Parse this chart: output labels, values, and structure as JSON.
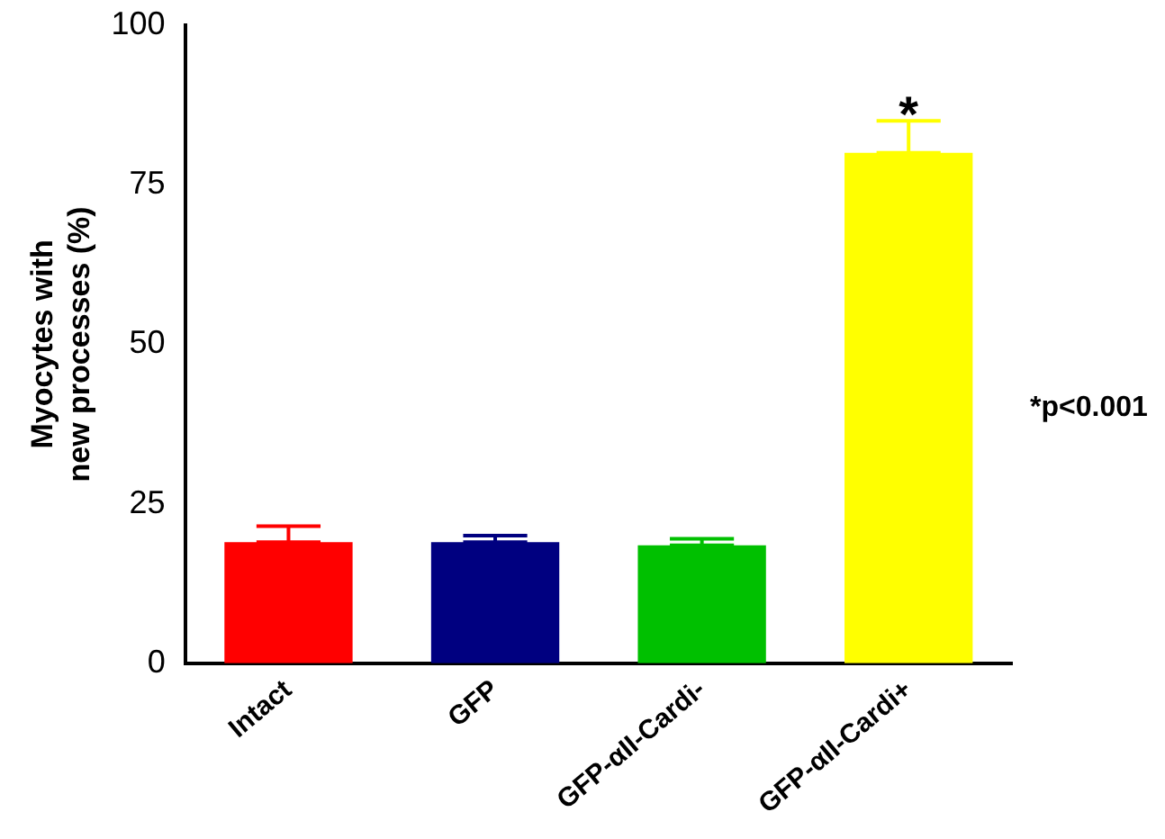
{
  "chart_data": {
    "type": "bar",
    "ylabel": "Myocytes with\nnew processes (%)",
    "categories": [
      "Intact",
      "GFP",
      "GFP-αII-Cardi-",
      "GFP-αII-Cardi+"
    ],
    "values": [
      19,
      19,
      18.5,
      80
    ],
    "colors": [
      "#ff0000",
      "#000080",
      "#00c000",
      "#ffff00"
    ],
    "errors": [
      [
        19,
        21.5
      ],
      [
        19,
        20
      ],
      [
        18.5,
        19.5
      ],
      [
        80,
        85
      ]
    ],
    "ylim": [
      0,
      100
    ],
    "yticks": [
      0,
      25,
      50,
      75,
      100
    ],
    "grid": false,
    "annotations": [
      {
        "text": "*",
        "x": "GFP-αII-Cardi+",
        "y": 85
      },
      "*p<0.001"
    ]
  }
}
